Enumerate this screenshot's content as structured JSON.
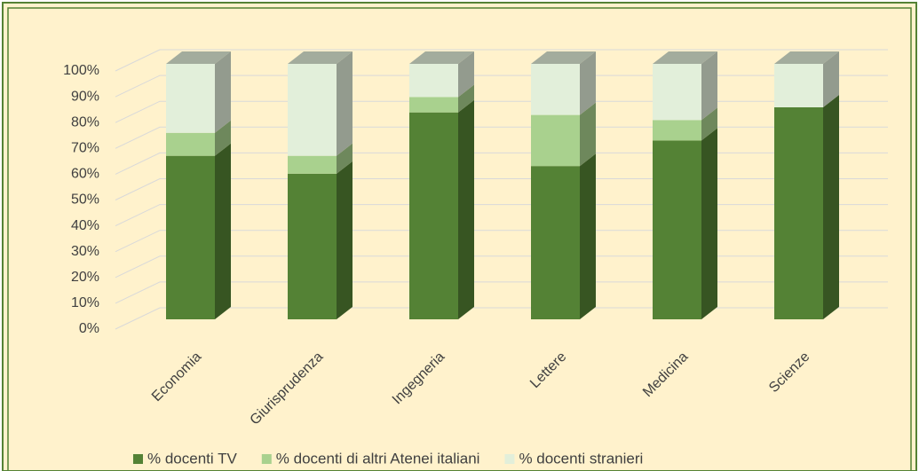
{
  "chart_data": {
    "type": "stacked_bar_3d",
    "categories": [
      "Economia",
      "Giurisprudenza",
      "Ingegneria",
      "Lettere",
      "Medicina",
      "Scienze"
    ],
    "series": [
      {
        "name": "% docenti TV",
        "color": "#548235",
        "values": [
          64,
          57,
          81,
          60,
          70,
          83
        ]
      },
      {
        "name": "% docenti di altri Atenei italiani",
        "color": "#a9d18e",
        "values": [
          9,
          7,
          6,
          20,
          8,
          0
        ]
      },
      {
        "name": "% docenti stranieri",
        "color": "#e2efda",
        "values": [
          27,
          36,
          13,
          20,
          22,
          17
        ]
      }
    ],
    "ylim": [
      0,
      100
    ],
    "yticks": [
      {
        "value": 0,
        "label": "0%"
      },
      {
        "value": 10,
        "label": "10%"
      },
      {
        "value": 20,
        "label": "20%"
      },
      {
        "value": 30,
        "label": "30%"
      },
      {
        "value": 40,
        "label": "40%"
      },
      {
        "value": 50,
        "label": "50%"
      },
      {
        "value": 60,
        "label": "60%"
      },
      {
        "value": 70,
        "label": "70%"
      },
      {
        "value": 80,
        "label": "80%"
      },
      {
        "value": 90,
        "label": "90%"
      },
      {
        "value": 100,
        "label": "100%"
      }
    ],
    "grid": true,
    "legend": "bottom"
  }
}
